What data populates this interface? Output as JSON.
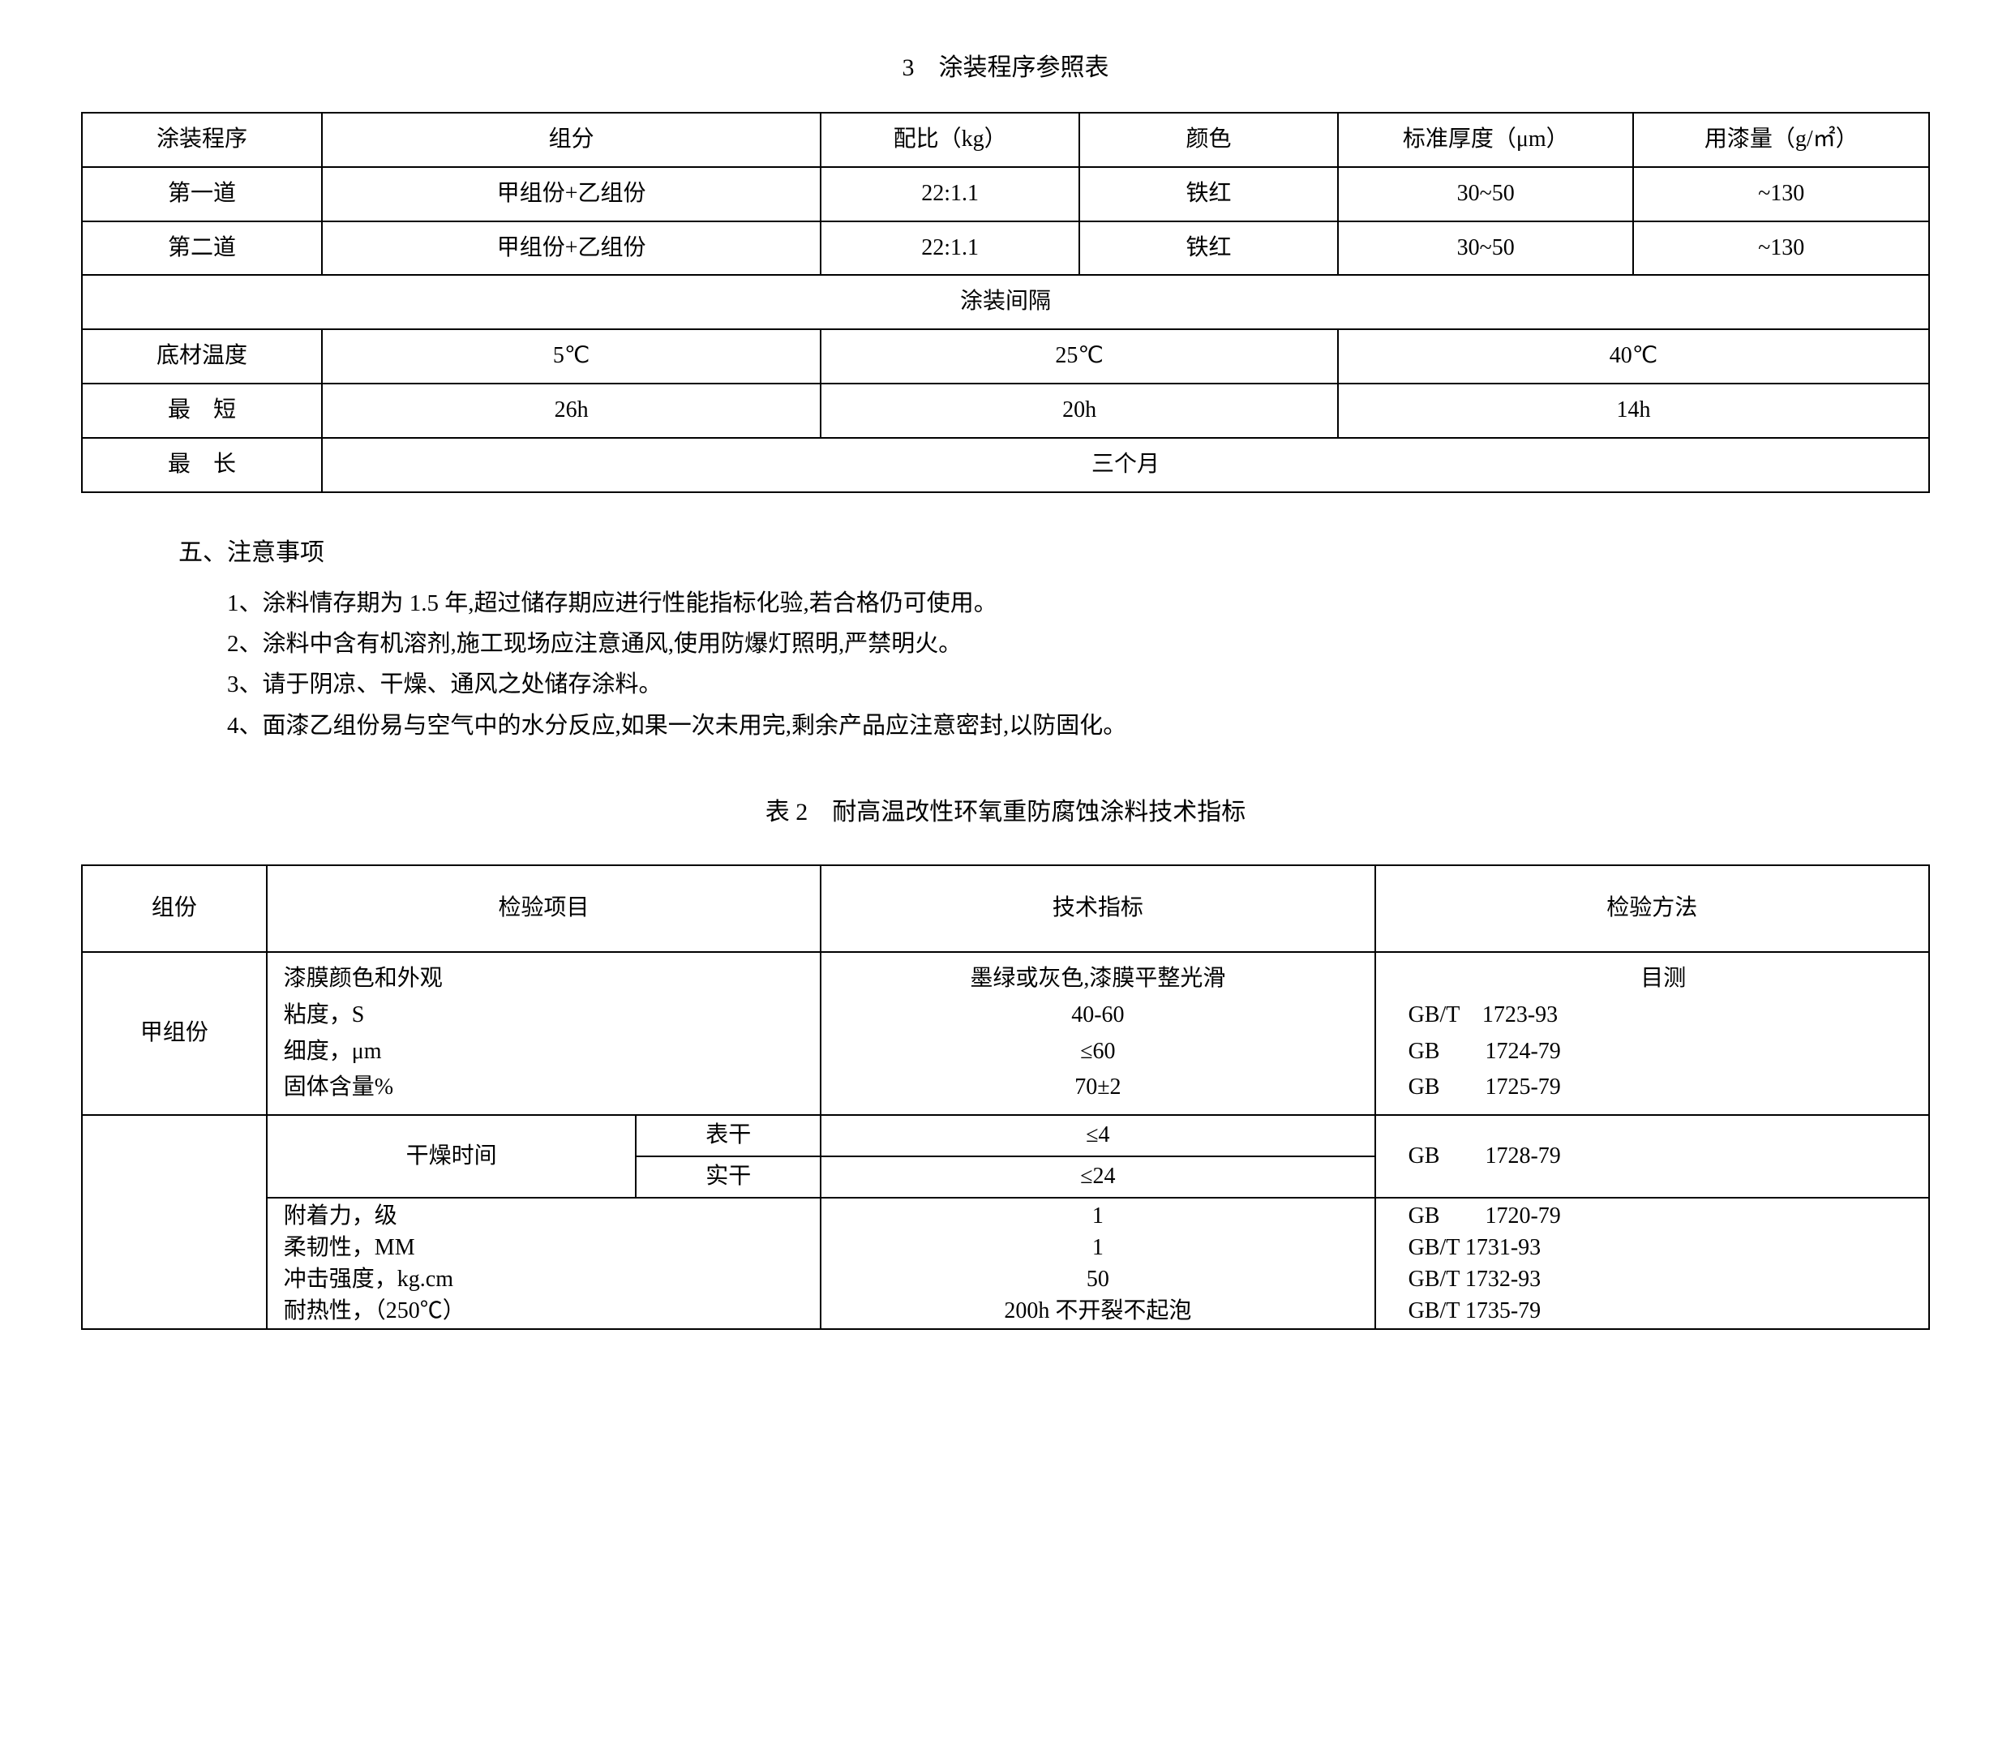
{
  "table1": {
    "title": "3　涂装程序参照表",
    "headers": [
      "涂装程序",
      "组分",
      "配比（kg）",
      "颜色",
      "标准厚度（μm）",
      "用漆量（g/㎡）"
    ],
    "rows": [
      [
        "第一道",
        "甲组份+乙组份",
        "22:1.1",
        "铁红",
        "30~50",
        "~130"
      ],
      [
        "第二道",
        "甲组份+乙组份",
        "22:1.1",
        "铁红",
        "30~50",
        "~130"
      ]
    ],
    "interval_header": "涂装间隔",
    "interval_rows": {
      "temp_label": "底材温度",
      "temps": [
        "5℃",
        "25℃",
        "40℃"
      ],
      "short_label": "最　短",
      "short_vals": [
        "26h",
        "20h",
        "14h"
      ],
      "long_label": "最　长",
      "long_val": "三个月"
    },
    "col_widths": [
      "13%",
      "27%",
      "14%",
      "14%",
      "16%",
      "16%"
    ]
  },
  "notes": {
    "heading": "五、注意事项",
    "items": [
      "1、涂料情存期为 1.5 年,超过储存期应进行性能指标化验,若合格仍可使用。",
      "2、涂料中含有机溶剂,施工现场应注意通风,使用防爆灯照明,严禁明火。",
      "3、请于阴凉、干燥、通风之处储存涂料。",
      "4、面漆乙组份易与空气中的水分反应,如果一次未用完,剩余产品应注意密封,以防固化。"
    ]
  },
  "table2": {
    "title": "表 2　耐高温改性环氧重防腐蚀涂料技术指标",
    "headers": [
      "组份",
      "检验项目",
      "技术指标",
      "检验方法"
    ],
    "group_a_label": "甲组份",
    "group_a": {
      "items": [
        "漆膜颜色和外观",
        "粘度，S",
        "细度，μm",
        "固体含量%"
      ],
      "specs": [
        "墨绿或灰色,漆膜平整光滑",
        "40-60",
        "≤60",
        "70±2"
      ],
      "methods": [
        "目测",
        "GB/T　1723-93",
        "GB　　1724-79",
        "GB　　1725-79"
      ]
    },
    "dry": {
      "label": "干燥时间",
      "sub1_label": "表干",
      "sub1_spec": "≤4",
      "sub2_label": "实干",
      "sub2_spec": "≤24",
      "method": "GB　　1728-79"
    },
    "other": {
      "items": [
        "附着力，级",
        "柔韧性，MM",
        "冲击强度，kg.cm",
        "耐热性，（250℃）"
      ],
      "specs": [
        "1",
        "1",
        "50",
        "200h 不开裂不起泡"
      ],
      "methods": [
        "GB　　1720-79",
        "GB/T 1731-93",
        "GB/T 1732-93",
        "GB/T 1735-79"
      ]
    },
    "col_widths": [
      "10%",
      "20%",
      "10%",
      "30%",
      "30%"
    ]
  }
}
